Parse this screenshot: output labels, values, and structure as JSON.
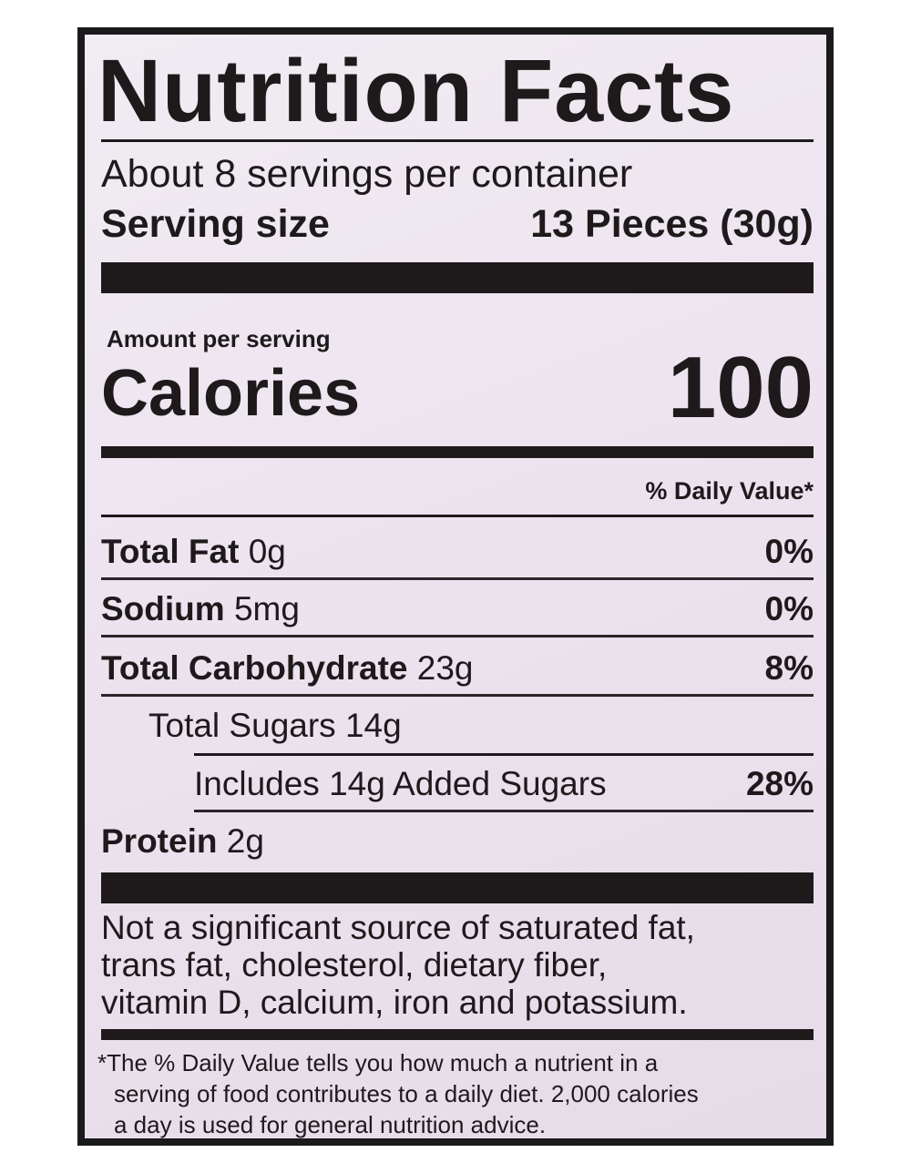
{
  "title": "Nutrition Facts",
  "servings": "About 8 servings per container",
  "serving_size": {
    "label": "Serving size",
    "value": "13 Pieces (30g)"
  },
  "amount_per_serving": "Amount per serving",
  "calories": {
    "label": "Calories",
    "value": "100"
  },
  "daily_value_header": "% Daily Value*",
  "nutrients": [
    {
      "name": "Total Fat",
      "amount": "0g",
      "dv": "0%"
    },
    {
      "name": "Sodium",
      "amount": "5mg",
      "dv": "0%"
    },
    {
      "name": "Total Carbohydrate",
      "amount": "23g",
      "dv": "8%"
    },
    {
      "name": "Total Sugars",
      "amount": "14g"
    },
    {
      "name": "Includes 14g Added Sugars",
      "dv": "28%"
    },
    {
      "name": "Protein",
      "amount": "2g"
    }
  ],
  "not_significant": [
    "Not a significant source of saturated fat,",
    "trans fat, cholesterol, dietary fiber,",
    "vitamin D, calcium, iron and potassium."
  ],
  "footnote": [
    "*The % Daily Value tells you how much a nutrient in a",
    "serving of food contributes to a daily diet. 2,000 calories",
    "a day is used for general nutrition advice."
  ]
}
